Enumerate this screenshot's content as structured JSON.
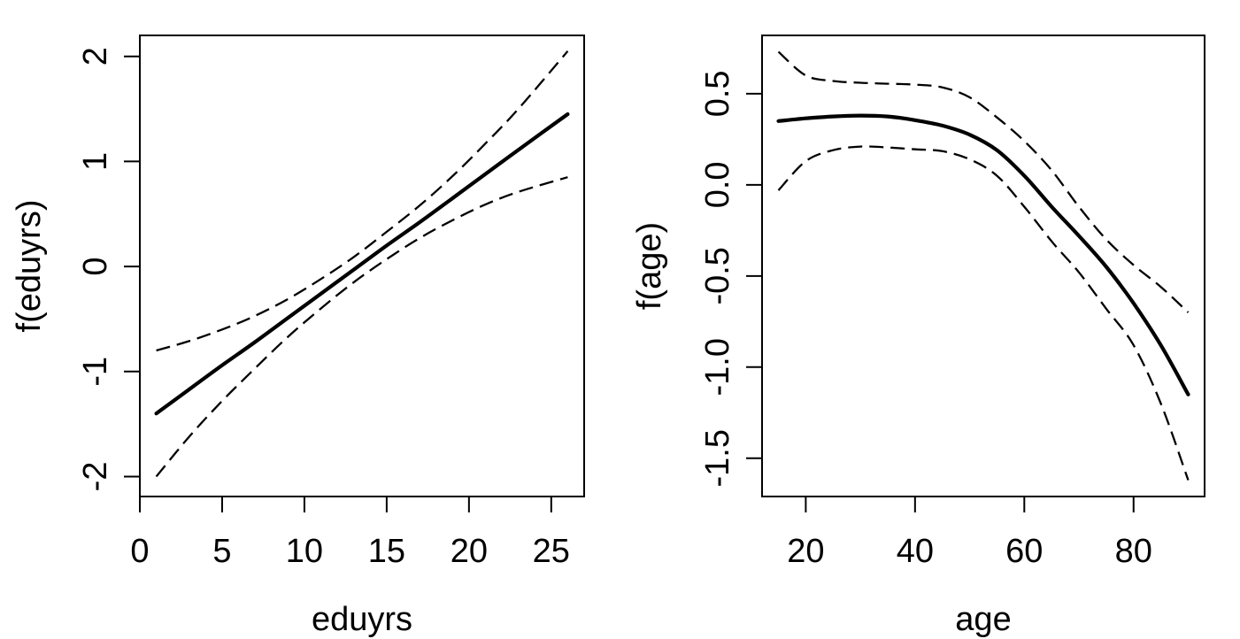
{
  "figure": {
    "background": "#ffffff",
    "line_color": "#000000",
    "panel_count": 2
  },
  "chart_data": [
    {
      "id": "eduyrs-panel",
      "type": "line",
      "title": "",
      "xlabel": "eduyrs",
      "ylabel": "f(eduyrs)",
      "xlim": [
        0,
        27
      ],
      "ylim": [
        -2.19,
        2.2
      ],
      "grid": false,
      "legend": "none",
      "xticks": [
        0,
        5,
        10,
        15,
        20,
        25
      ],
      "xtick_labels": [
        "0",
        "5",
        "10",
        "15",
        "20",
        "25"
      ],
      "yticks": [
        -2,
        -1,
        0,
        1,
        2
      ],
      "ytick_labels": [
        "-2",
        "-1",
        "0",
        "1",
        "2"
      ],
      "x": [
        1,
        3,
        5,
        7,
        9,
        11,
        13,
        15,
        17,
        19,
        21,
        23,
        26
      ],
      "series": [
        {
          "name": "fit",
          "style": "solid",
          "width": 4.2,
          "values": [
            -1.4,
            -1.17,
            -0.94,
            -0.72,
            -0.49,
            -0.26,
            -0.03,
            0.2,
            0.42,
            0.65,
            0.88,
            1.11,
            1.45
          ]
        },
        {
          "name": "upper-95-ci",
          "style": "dashed",
          "width": 2.3,
          "values": [
            -0.8,
            -0.71,
            -0.6,
            -0.47,
            -0.31,
            -0.12,
            0.09,
            0.33,
            0.58,
            0.86,
            1.17,
            1.5,
            2.05
          ]
        },
        {
          "name": "lower-95-ci",
          "style": "dashed",
          "width": 2.3,
          "values": [
            -2.0,
            -1.62,
            -1.28,
            -0.97,
            -0.67,
            -0.4,
            -0.15,
            0.07,
            0.27,
            0.44,
            0.59,
            0.71,
            0.85
          ]
        }
      ]
    },
    {
      "id": "age-panel",
      "type": "line",
      "title": "",
      "xlabel": "age",
      "ylabel": "f(age)",
      "xlim": [
        12,
        93
      ],
      "ylim": [
        -1.71,
        0.82
      ],
      "grid": false,
      "legend": "none",
      "xticks": [
        20,
        40,
        60,
        80
      ],
      "xtick_labels": [
        "20",
        "40",
        "60",
        "80"
      ],
      "yticks": [
        -1.5,
        -1.0,
        -0.5,
        0.0,
        0.5
      ],
      "ytick_labels": [
        "-1.5",
        "-1.0",
        "-0.5",
        "0.0",
        "0.5"
      ],
      "x": [
        15,
        20,
        25,
        30,
        35,
        40,
        45,
        50,
        55,
        60,
        65,
        70,
        75,
        80,
        85,
        90
      ],
      "series": [
        {
          "name": "fit",
          "style": "solid",
          "width": 4.2,
          "values": [
            0.35,
            0.365,
            0.375,
            0.38,
            0.375,
            0.355,
            0.325,
            0.275,
            0.19,
            0.05,
            -0.12,
            -0.28,
            -0.45,
            -0.65,
            -0.88,
            -1.15
          ]
        },
        {
          "name": "upper-95-ci",
          "style": "dashed",
          "width": 2.3,
          "values": [
            0.73,
            0.6,
            0.57,
            0.56,
            0.555,
            0.55,
            0.535,
            0.48,
            0.37,
            0.24,
            0.08,
            -0.12,
            -0.3,
            -0.44,
            -0.56,
            -0.7
          ]
        },
        {
          "name": "lower-95-ci",
          "style": "dashed",
          "width": 2.3,
          "values": [
            -0.03,
            0.13,
            0.19,
            0.21,
            0.205,
            0.195,
            0.185,
            0.14,
            0.05,
            -0.12,
            -0.31,
            -0.48,
            -0.68,
            -0.88,
            -1.2,
            -1.62
          ]
        }
      ]
    }
  ]
}
